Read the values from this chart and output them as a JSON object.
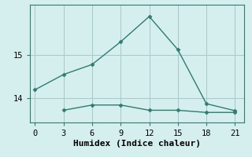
{
  "xlabel": "Humidex (Indice chaleur)",
  "background_color": "#d5eeee",
  "line_color": "#2e7d6e",
  "grid_color": "#a8c8c8",
  "spine_color": "#2e7d6e",
  "upper_x": [
    0,
    3,
    6,
    9,
    12,
    15,
    18,
    21
  ],
  "upper_y": [
    14.2,
    14.55,
    14.78,
    15.3,
    15.88,
    15.12,
    13.88,
    13.72
  ],
  "lower_x": [
    3,
    6,
    9,
    12,
    15,
    18,
    21
  ],
  "lower_y": [
    13.73,
    13.85,
    13.85,
    13.73,
    13.73,
    13.68,
    13.68
  ],
  "xlim": [
    -0.5,
    22
  ],
  "ylim": [
    13.45,
    16.15
  ],
  "xticks": [
    0,
    3,
    6,
    9,
    12,
    15,
    18,
    21
  ],
  "yticks": [
    14,
    15
  ],
  "marker": "D",
  "marker_size": 2.5,
  "line_width": 1.0,
  "xlabel_fontsize": 8,
  "tick_fontsize": 7.5
}
